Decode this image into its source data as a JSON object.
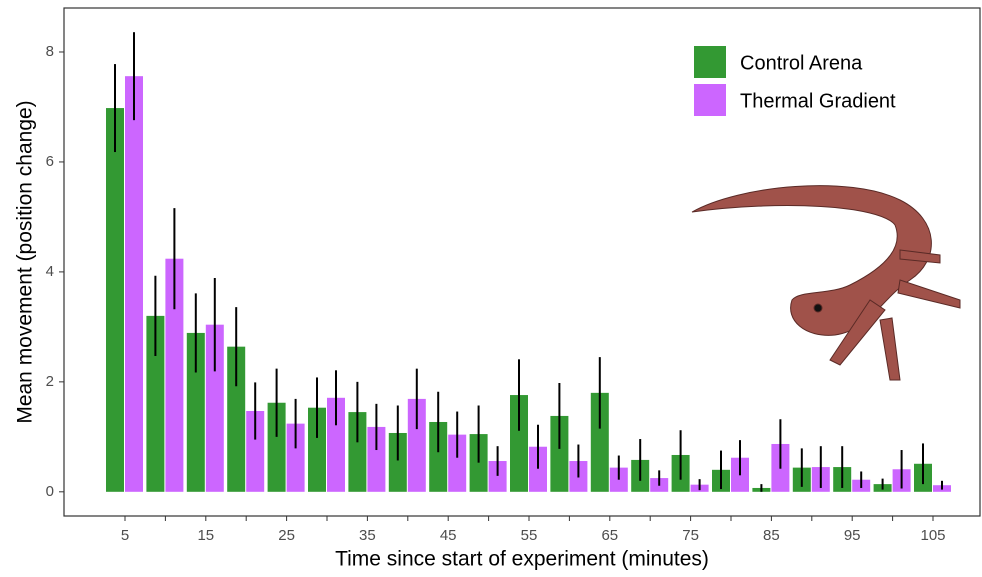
{
  "chart_data": {
    "type": "bar",
    "xlabel": "Time since start of experiment (minutes)",
    "ylabel": "Mean movement (position change)",
    "categories": [
      "5",
      null,
      "15",
      null,
      "25",
      null,
      "35",
      null,
      "45",
      null,
      "55",
      null,
      "65",
      null,
      "75",
      null,
      "85",
      null,
      "95",
      null,
      "105"
    ],
    "series": [
      {
        "name": "Control Arena",
        "color": "#339933",
        "values": [
          6.98,
          3.2,
          2.89,
          2.64,
          1.62,
          1.53,
          1.45,
          1.07,
          1.27,
          1.05,
          1.76,
          1.38,
          1.8,
          0.58,
          0.67,
          0.4,
          0.07,
          0.44,
          0.45,
          0.14,
          0.51
        ],
        "errors": [
          0.8,
          0.73,
          0.72,
          0.72,
          0.62,
          0.55,
          0.55,
          0.5,
          0.55,
          0.52,
          0.65,
          0.6,
          0.65,
          0.38,
          0.45,
          0.35,
          0.07,
          0.35,
          0.38,
          0.1,
          0.37
        ]
      },
      {
        "name": "Thermal Gradient",
        "color": "#cc66ff",
        "values": [
          7.56,
          4.24,
          3.04,
          1.47,
          1.24,
          1.71,
          1.18,
          1.69,
          1.04,
          0.56,
          0.82,
          0.56,
          0.44,
          0.25,
          0.13,
          0.62,
          0.87,
          0.45,
          0.22,
          0.41,
          0.12
        ],
        "errors": [
          0.8,
          0.92,
          0.85,
          0.52,
          0.45,
          0.5,
          0.42,
          0.55,
          0.42,
          0.27,
          0.4,
          0.3,
          0.22,
          0.14,
          0.1,
          0.32,
          0.45,
          0.38,
          0.15,
          0.35,
          0.08
        ]
      }
    ],
    "ylim": [
      -0.44,
      8.8
    ],
    "yticks": [
      0,
      2,
      4,
      6,
      8
    ],
    "legend": "top-right"
  }
}
